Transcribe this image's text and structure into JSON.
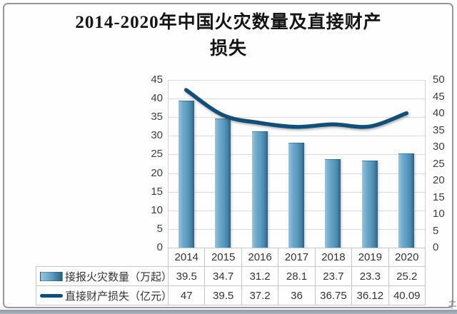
{
  "title": {
    "line1": "2014-2020年中国火灾数量及直接财产",
    "line2": "损失"
  },
  "chart_data": {
    "type": "bar",
    "combo": "bar + smoothed line, dual value axes, data table with legend keys below plot",
    "categories": [
      "2014",
      "2015",
      "2016",
      "2017",
      "2018",
      "2019",
      "2020"
    ],
    "series": [
      {
        "name": "接报火灾数量（万起）",
        "type": "bar",
        "axis": "left",
        "values": [
          39.5,
          34.7,
          31.2,
          28.1,
          23.7,
          23.3,
          25.2
        ]
      },
      {
        "name": "直接财产损失（亿元）",
        "type": "line",
        "axis": "right",
        "values": [
          47,
          39.5,
          37.2,
          36,
          36.75,
          36.12,
          40.09
        ]
      }
    ],
    "left_axis": {
      "min": 0,
      "max": 45,
      "step": 5,
      "ticks": [
        45,
        40,
        35,
        30,
        25,
        20,
        15,
        10,
        5,
        0
      ]
    },
    "right_axis": {
      "min": 0,
      "max": 50,
      "step": 5,
      "ticks": [
        50,
        45,
        40,
        35,
        30,
        25,
        20,
        15,
        10,
        5,
        0
      ]
    },
    "grid": true,
    "legend_position": "left column of data table",
    "colors": {
      "bar_main": "#5b9bc0",
      "bar_light": "#9cc3da",
      "bar_dark": "#2d5f7d",
      "line": "#134e75",
      "gridline": "#dadada",
      "table_border": "#c3c6ca",
      "axis_text": "#3d3d3d",
      "title_text": "#141414",
      "bottom_band": "#9aa6b1"
    }
  }
}
